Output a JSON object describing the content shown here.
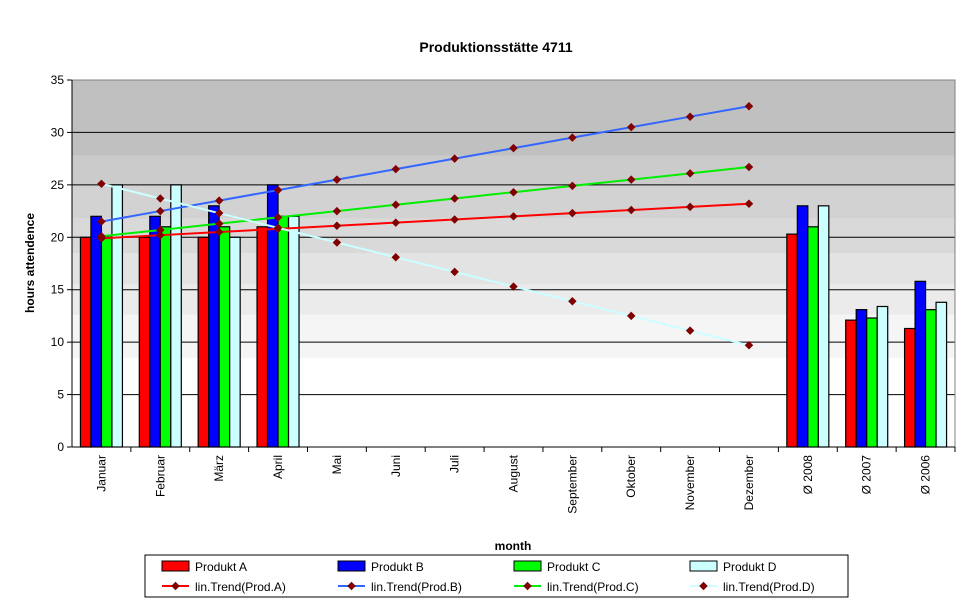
{
  "chart_data": {
    "type": "bar",
    "title": "Produktionsstätte 4711",
    "xlabel": "month",
    "ylabel": "hours attendence",
    "ylim": [
      0,
      35
    ],
    "yticks": [
      0,
      5,
      10,
      15,
      20,
      25,
      30,
      35
    ],
    "grid": true,
    "legend_position": "bottom",
    "categories": [
      "Januar",
      "Februar",
      "März",
      "April",
      "Mai",
      "Juni",
      "Juli",
      "August",
      "September",
      "Oktober",
      "November",
      "Dezember",
      "Ø 2008",
      "Ø 2007",
      "Ø 2006"
    ],
    "series": [
      {
        "name": "Produkt A",
        "color": "#ff0000",
        "values": [
          20,
          20,
          20,
          21,
          null,
          null,
          null,
          null,
          null,
          null,
          null,
          null,
          20.3,
          12.1,
          11.3
        ]
      },
      {
        "name": "Produkt B",
        "color": "#0000ff",
        "values": [
          22,
          22,
          23,
          25,
          null,
          null,
          null,
          null,
          null,
          null,
          null,
          null,
          23,
          13.1,
          15.8
        ]
      },
      {
        "name": "Produkt C",
        "color": "#00ff00",
        "values": [
          20,
          21,
          21,
          22,
          null,
          null,
          null,
          null,
          null,
          null,
          null,
          null,
          21,
          12.3,
          13.1
        ]
      },
      {
        "name": "Produkt D",
        "color": "#ccffff",
        "values": [
          25,
          25,
          20,
          22,
          null,
          null,
          null,
          null,
          null,
          null,
          null,
          null,
          23,
          13.4,
          13.8
        ]
      }
    ],
    "trends": [
      {
        "name": "lin.Trend(Prod.A)",
        "color": "#ff0000",
        "values": [
          19.9,
          20.2,
          20.5,
          20.8,
          21.1,
          21.4,
          21.7,
          22.0,
          22.3,
          22.6,
          22.9,
          23.2
        ]
      },
      {
        "name": "lin.Trend(Prod.B)",
        "color": "#3366ff",
        "values": [
          21.5,
          22.5,
          23.5,
          24.5,
          25.5,
          26.5,
          27.5,
          28.5,
          29.5,
          30.5,
          31.5,
          32.5
        ]
      },
      {
        "name": "lin.Trend(Prod.C)",
        "color": "#00ee00",
        "values": [
          20.1,
          20.7,
          21.3,
          21.9,
          22.5,
          23.1,
          23.7,
          24.3,
          24.9,
          25.5,
          26.1,
          26.7
        ]
      },
      {
        "name": "lin.Trend(Prod.D)",
        "color": "#ccffff",
        "values": [
          25.1,
          23.7,
          22.3,
          20.9,
          19.5,
          18.1,
          16.7,
          15.3,
          13.9,
          12.5,
          11.1,
          9.7
        ]
      }
    ]
  }
}
